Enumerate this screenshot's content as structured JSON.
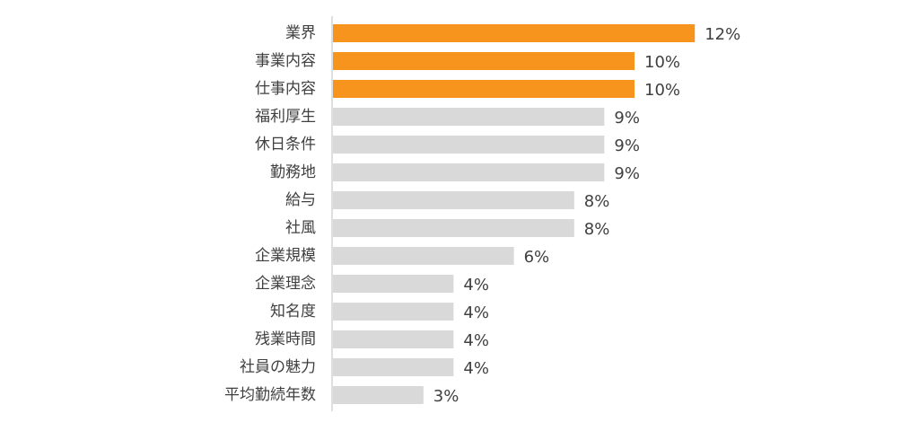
{
  "chart_data": {
    "type": "bar",
    "orientation": "horizontal",
    "categories": [
      "業界",
      "事業内容",
      "仕事内容",
      "福利厚生",
      "休日条件",
      "勤務地",
      "給与",
      "社風",
      "企業規模",
      "企業理念",
      "知名度",
      "残業時間",
      "社員の魅力",
      "平均勤続年数"
    ],
    "values": [
      12,
      10,
      10,
      9,
      9,
      9,
      8,
      8,
      6,
      4,
      4,
      4,
      4,
      3
    ],
    "labels": [
      "12%",
      "10%",
      "10%",
      "9%",
      "9%",
      "9%",
      "8%",
      "8%",
      "6%",
      "4%",
      "4%",
      "4%",
      "4%",
      "3%"
    ],
    "highlight_count": 3,
    "colors": {
      "highlight": "#F7941D",
      "default": "#D9D9D9",
      "axis": "#BFBFBF",
      "text": "#404040"
    },
    "xlim": [
      0,
      12
    ],
    "grid": false,
    "legend": "none"
  }
}
